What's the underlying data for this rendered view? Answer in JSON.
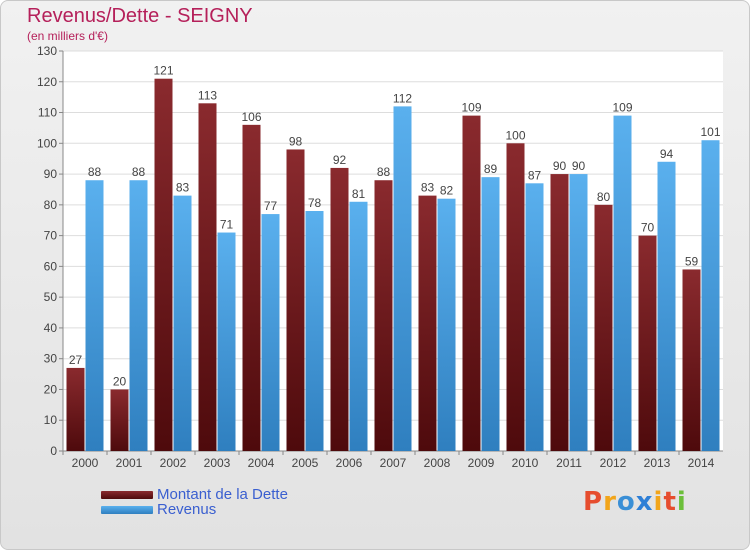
{
  "title": "Revenus/Dette - SEIGNY",
  "subtitle": "(en milliers d'€)",
  "legend": [
    {
      "label": "Montant de la Dette"
    },
    {
      "label": "Revenus"
    }
  ],
  "logo_text": "Proxiti",
  "colors": {
    "title": "#b5205a",
    "debt_top": "#8a2a2e",
    "debt_bottom": "#4e0a0c",
    "revenue_top": "#5ab0ee",
    "revenue_bottom": "#2f7fbf",
    "legend_text": "#3a5fd0",
    "logo": [
      "#e64d2e",
      "#f2a51a",
      "#3a8fd6",
      "#2e7fd6",
      "#f2a51a",
      "#e64d2e",
      "#6cbf3a"
    ]
  },
  "chart_data": {
    "type": "bar",
    "categories": [
      "2000",
      "2001",
      "2002",
      "2003",
      "2004",
      "2005",
      "2006",
      "2007",
      "2008",
      "2009",
      "2010",
      "2011",
      "2012",
      "2013",
      "2014"
    ],
    "series": [
      {
        "name": "Montant de la Dette",
        "values": [
          27,
          20,
          121,
          113,
          106,
          98,
          92,
          88,
          83,
          109,
          100,
          90,
          80,
          70,
          59
        ]
      },
      {
        "name": "Revenus",
        "values": [
          88,
          88,
          83,
          71,
          77,
          78,
          81,
          112,
          82,
          89,
          87,
          90,
          109,
          94,
          101
        ]
      }
    ],
    "ylim": [
      0,
      130
    ],
    "yticks": [
      0,
      10,
      20,
      30,
      40,
      50,
      60,
      70,
      80,
      90,
      100,
      110,
      120,
      130
    ],
    "grid": true,
    "legend_position": "bottom-left"
  }
}
